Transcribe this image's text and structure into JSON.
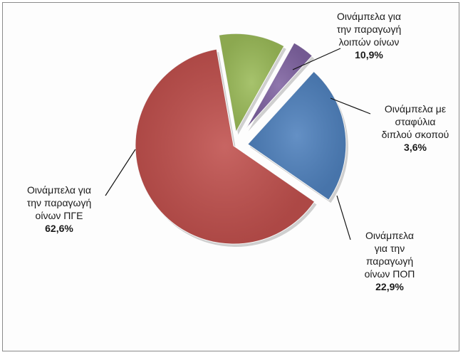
{
  "chart_data": {
    "type": "pie",
    "exploded": true,
    "slices": [
      {
        "label": "Οινάμπελα για την παραγωγή οίνων ΠΓΕ",
        "value": 62.6,
        "value_label": "62,6%",
        "color": "#c0504d"
      },
      {
        "label": "Οινάμπελα για την παραγωγή λοιπών οίνων",
        "value": 10.9,
        "value_label": "10,9%",
        "color": "#9bbb59"
      },
      {
        "label": "Οινάμπελα με σταφύλια διπλού σκοπού",
        "value": 3.6,
        "value_label": "3,6%",
        "color": "#8064a2"
      },
      {
        "label": "Οινάμπελα για την παραγωγή οίνων ΠΟΠ",
        "value": 22.9,
        "value_label": "22,9%",
        "color": "#4f81bd"
      }
    ],
    "legend": "none",
    "labels_lines": [
      "Οινάμπελα για\nτην παραγωγή\nοίνων ΠΓΕ",
      "Οινάμπελα για\nτην παραγωγή\nλοιπών οίνων",
      "Οινάμπελα με\nσταφύλια\nδιπλού σκοπού",
      "Οινάμπελα\nγια την\nπαραγωγή\nοίνων ΠΟΠ"
    ]
  }
}
